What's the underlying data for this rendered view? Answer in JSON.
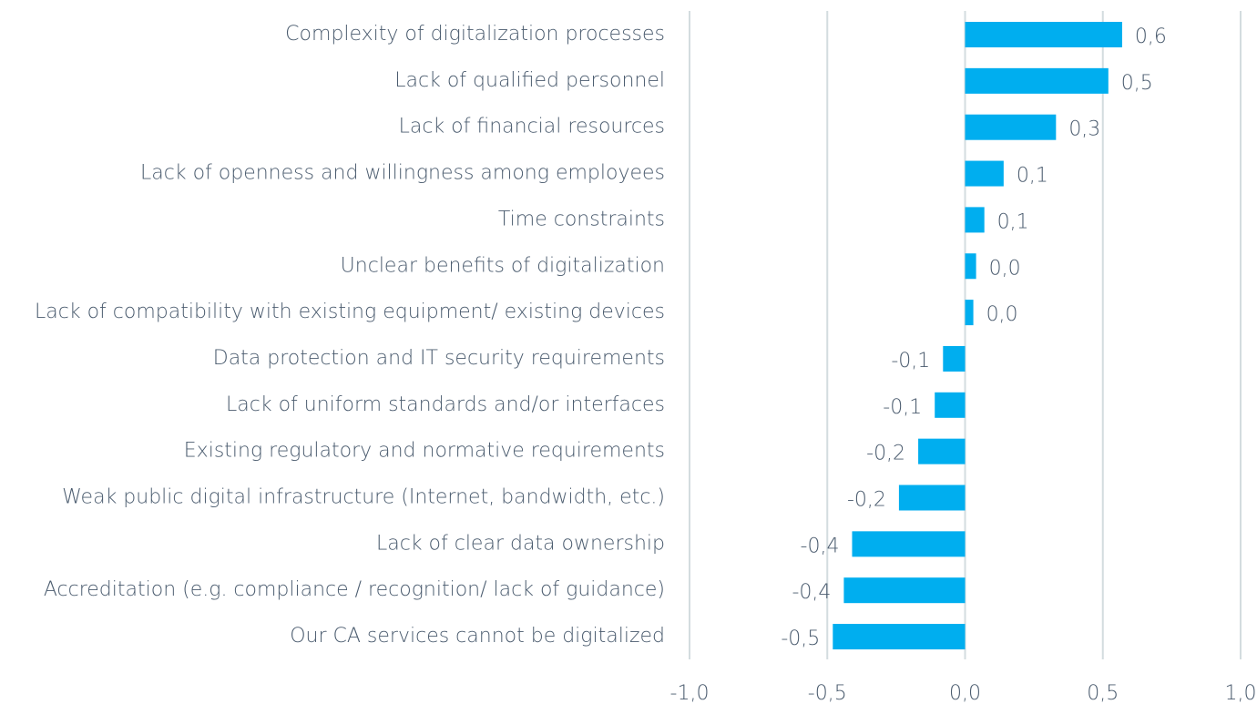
{
  "chart_data": {
    "type": "bar",
    "orientation": "horizontal",
    "categories": [
      "Complexity of digitalization processes",
      "Lack of qualified personnel",
      "Lack of financial resources",
      "Lack of openness and willingness among employees",
      "Time constraints",
      "Unclear benefits of digitalization",
      "Lack of compatibility with existing equipment/ existing devices",
      "Data protection and IT security requirements",
      "Lack of uniform standards and/or interfaces",
      "Existing regulatory and normative requirements",
      "Weak public digital infrastructure (Internet, bandwidth, etc.)",
      "Lack of clear data ownership",
      "Accreditation (e.g. compliance / recognition/ lack of guidance)",
      "Our CA services cannot be digitalized"
    ],
    "values": [
      0.57,
      0.52,
      0.33,
      0.14,
      0.07,
      0.04,
      0.03,
      -0.08,
      -0.11,
      -0.17,
      -0.24,
      -0.41,
      -0.44,
      -0.48
    ],
    "value_labels": [
      "0,6",
      "0,5",
      "0,3",
      "0,1",
      "0,1",
      "0,0",
      "0,0",
      "-0,1",
      "-0,1",
      "-0,2",
      "-0,2",
      "-0,4",
      "-0,4",
      "-0,5"
    ],
    "color": "#00aeef",
    "xlim": [
      -1.0,
      1.0
    ],
    "xticks": [
      {
        "value": -1.0,
        "label": "-1,0"
      },
      {
        "value": -0.5,
        "label": "-0,5"
      },
      {
        "value": 0.0,
        "label": "0,0"
      },
      {
        "value": 0.5,
        "label": "0,5"
      },
      {
        "value": 1.0,
        "label": "1,0"
      }
    ],
    "grid": true
  }
}
